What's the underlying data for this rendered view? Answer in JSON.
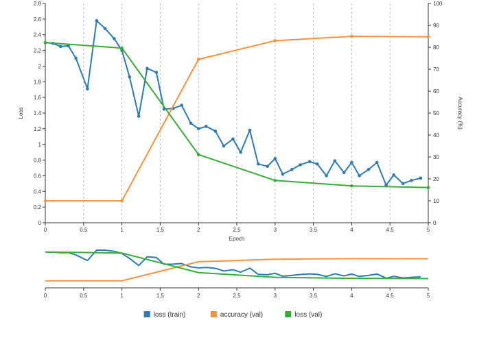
{
  "chart_data": {
    "type": "line",
    "xlabel": "Epoch",
    "ylabel_left": "Loss",
    "ylabel_right": "Accuracy (%)",
    "xlim": [
      0,
      5
    ],
    "ylim_left": [
      0,
      2.8
    ],
    "ylim_right": [
      0,
      100
    ],
    "x_ticks": [
      "0",
      "0.5",
      "1",
      "1.5",
      "2",
      "2.5",
      "3",
      "3.5",
      "4",
      "4.5",
      "5"
    ],
    "y_left_ticks": [
      "0",
      "0.2",
      "0.4",
      "0.6",
      "0.8",
      "1",
      "1.2",
      "1.4",
      "1.6",
      "1.8",
      "2",
      "2.2",
      "2.4",
      "2.6",
      "2.8"
    ],
    "y_right_ticks": [
      "0",
      "10",
      "20",
      "30",
      "40",
      "50",
      "60",
      "70",
      "80",
      "90",
      "100"
    ],
    "grid": "vertical dashed",
    "legend_position": "bottom-center",
    "series": [
      {
        "name": "loss (train)",
        "axis": "left",
        "color": "#2f7ab5",
        "x": [
          0,
          0.1,
          0.2,
          0.3,
          0.4,
          0.55,
          0.67,
          0.78,
          0.9,
          1.0,
          1.1,
          1.22,
          1.33,
          1.45,
          1.55,
          1.67,
          1.78,
          1.9,
          2.0,
          2.1,
          2.22,
          2.33,
          2.45,
          2.55,
          2.67,
          2.78,
          2.9,
          3.0,
          3.1,
          3.22,
          3.33,
          3.45,
          3.55,
          3.67,
          3.78,
          3.9,
          4.0,
          4.1,
          4.22,
          4.33,
          4.45,
          4.55,
          4.67,
          4.78,
          4.9
        ],
        "values": [
          2.3,
          2.29,
          2.25,
          2.26,
          2.1,
          1.71,
          2.58,
          2.48,
          2.35,
          2.2,
          1.86,
          1.36,
          1.97,
          1.92,
          1.45,
          1.46,
          1.5,
          1.27,
          1.2,
          1.23,
          1.17,
          0.98,
          1.07,
          0.9,
          1.18,
          0.75,
          0.72,
          0.82,
          0.62,
          0.68,
          0.74,
          0.78,
          0.75,
          0.6,
          0.79,
          0.64,
          0.77,
          0.6,
          0.68,
          0.77,
          0.48,
          0.61,
          0.5,
          0.54,
          0.57
        ]
      },
      {
        "name": "accuracy (val)",
        "axis": "right",
        "color": "#f8923f",
        "x": [
          0,
          1,
          2,
          3,
          4,
          5
        ],
        "values": [
          10,
          10,
          74.5,
          83,
          85,
          84.8
        ]
      },
      {
        "name": "loss (val)",
        "axis": "left",
        "color": "#3aaa3a",
        "x": [
          0,
          1,
          2,
          3,
          4,
          5
        ],
        "values": [
          2.3,
          2.23,
          0.87,
          0.54,
          0.47,
          0.45
        ]
      }
    ]
  }
}
